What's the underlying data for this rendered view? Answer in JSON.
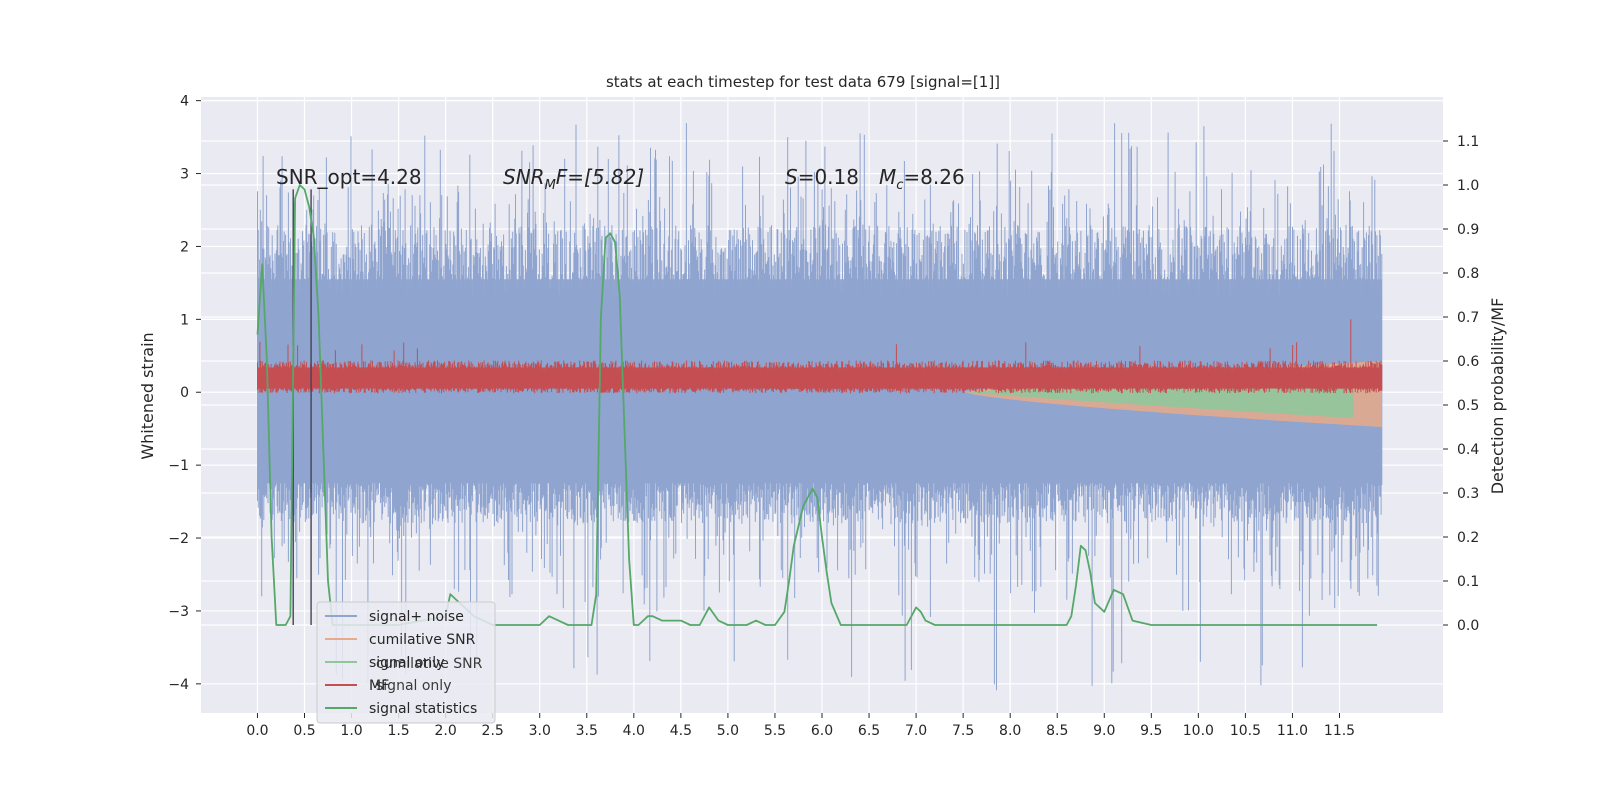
{
  "chart_data": {
    "type": "line",
    "title": "stats at each timestep for test data 679 [signal=[1]]",
    "xlabel": "",
    "ylabel": "Whitened strain",
    "ylabel_right": "Detection probability/MF",
    "xlim": [
      -0.6,
      12.6
    ],
    "ylim": [
      -4.4,
      4.05
    ],
    "ylim_right": [
      -0.2,
      1.2
    ],
    "grid": true,
    "x_ticks": [
      "0.0",
      "0.5",
      "1.0",
      "1.5",
      "2.0",
      "2.5",
      "3.0",
      "3.5",
      "4.0",
      "4.5",
      "5.0",
      "5.5",
      "6.0",
      "6.5",
      "7.0",
      "7.5",
      "8.0",
      "8.5",
      "9.0",
      "9.5",
      "10.0",
      "10.5",
      "11.0",
      "11.5"
    ],
    "y_ticks": [
      "4",
      "3",
      "2",
      "1",
      "0",
      "−1",
      "−2",
      "−3",
      "−4"
    ],
    "y_tick_values": [
      4,
      3,
      2,
      1,
      0,
      -1,
      -2,
      -3,
      -4
    ],
    "right_ticks": [
      "1.1",
      "1.0",
      "0.9",
      "0.8",
      "0.7",
      "0.6",
      "0.5",
      "0.4",
      "0.3",
      "0.2",
      "0.1",
      "0.0"
    ],
    "right_tick_values": [
      1.1,
      1.0,
      0.9,
      0.8,
      0.7,
      0.6,
      0.5,
      0.4,
      0.3,
      0.2,
      0.1,
      0.0
    ],
    "annotations": {
      "snr_opt": "SNR_opt=4.28",
      "snr_mf_prefix": "SNR",
      "snr_mf_sub": "M",
      "snr_mf_suffix": "F=[5.82]",
      "s_var": "S",
      "s_val": "=0.18",
      "mc_var": "M",
      "mc_sub": "c",
      "mc_val": "=8.26"
    },
    "vertical_lines_x": [
      0.38,
      0.57
    ],
    "legend": {
      "placement": "lower-left",
      "entries": [
        {
          "label": "signal+ noise",
          "color": "#8fa4cf"
        },
        {
          "label": "cumilative SNR",
          "color": "#e8aa8a"
        },
        {
          "label": "signal only",
          "color": "#8fc69a"
        },
        {
          "label": "MF",
          "color": "#c44e52"
        },
        {
          "label": "signal statistics",
          "color": "#55a868"
        }
      ],
      "ghost_entries": [
        "cumilative SNR",
        "signal only"
      ]
    },
    "series": [
      {
        "name": "signal+ noise",
        "axis": "left",
        "x_range": [
          0,
          11.95
        ],
        "envelope_upper": [
          1.9,
          2.3
        ],
        "envelope_lower": [
          -1.4,
          -1.8
        ],
        "spike_max": 3.7,
        "spike_min": -4.1,
        "color": "#8fa4cf"
      },
      {
        "name": "cumilative SNR",
        "axis": "right",
        "x_range": [
          7.5,
          11.95
        ],
        "values_start": 0.53,
        "values_end": 0.45,
        "color": "#e8aa8a"
      },
      {
        "name": "signal only",
        "axis": "right",
        "x_range": [
          7.5,
          11.65
        ],
        "values_start": 0.53,
        "values_end": 0.58,
        "color": "#8fc69a"
      },
      {
        "name": "MF",
        "axis": "left",
        "x_range": [
          0,
          11.95
        ],
        "band_mean": 0.22,
        "band_halfwidth": 0.18,
        "spike_max": 1.0,
        "color": "#c44e52"
      },
      {
        "name": "signal statistics",
        "axis": "right",
        "color": "#55a868",
        "x": [
          0.0,
          0.05,
          0.1,
          0.15,
          0.2,
          0.25,
          0.3,
          0.35,
          0.4,
          0.45,
          0.5,
          0.55,
          0.6,
          0.65,
          0.7,
          0.75,
          0.8,
          0.85,
          1.0,
          1.5,
          2.0,
          2.05,
          2.1,
          2.2,
          2.3,
          2.4,
          2.5,
          2.7,
          2.9,
          3.0,
          3.1,
          3.2,
          3.3,
          3.4,
          3.5,
          3.55,
          3.6,
          3.65,
          3.7,
          3.75,
          3.8,
          3.85,
          3.9,
          3.95,
          4.0,
          4.05,
          4.1,
          4.15,
          4.2,
          4.3,
          4.4,
          4.5,
          4.6,
          4.7,
          4.8,
          4.9,
          5.0,
          5.1,
          5.2,
          5.3,
          5.4,
          5.5,
          5.6,
          5.65,
          5.7,
          5.8,
          5.9,
          5.95,
          6.0,
          6.05,
          6.1,
          6.2,
          6.4,
          6.6,
          6.8,
          6.9,
          7.0,
          7.05,
          7.1,
          7.2,
          7.3,
          7.5,
          7.6,
          7.8,
          8.0,
          8.2,
          8.4,
          8.6,
          8.65,
          8.7,
          8.75,
          8.8,
          8.85,
          8.9,
          9.0,
          9.1,
          9.2,
          9.3,
          9.5,
          9.8,
          10.0,
          10.2,
          10.5,
          10.8,
          11.0,
          11.2,
          11.4,
          11.6,
          11.8,
          11.9
        ],
        "values": [
          0.66,
          0.82,
          0.6,
          0.2,
          0.0,
          0.0,
          0.0,
          0.02,
          0.97,
          1.0,
          0.99,
          0.95,
          0.88,
          0.7,
          0.4,
          0.1,
          0.0,
          0.0,
          0.0,
          0.0,
          0.02,
          0.07,
          0.06,
          0.04,
          0.02,
          0.01,
          0.0,
          0.0,
          0.0,
          0.0,
          0.02,
          0.01,
          0.0,
          0.0,
          0.0,
          0.0,
          0.07,
          0.7,
          0.88,
          0.89,
          0.87,
          0.75,
          0.45,
          0.15,
          0.0,
          0.0,
          0.01,
          0.02,
          0.02,
          0.01,
          0.01,
          0.01,
          0.0,
          0.0,
          0.04,
          0.01,
          0.0,
          0.0,
          0.0,
          0.01,
          0.0,
          0.0,
          0.03,
          0.1,
          0.18,
          0.27,
          0.31,
          0.29,
          0.2,
          0.12,
          0.05,
          0.0,
          0.0,
          0.0,
          0.0,
          0.0,
          0.04,
          0.03,
          0.01,
          0.0,
          0.0,
          0.0,
          0.0,
          0.0,
          0.0,
          0.0,
          0.0,
          0.0,
          0.02,
          0.09,
          0.18,
          0.17,
          0.12,
          0.05,
          0.03,
          0.08,
          0.07,
          0.01,
          0.0,
          0.0,
          0.0,
          0.0,
          0.0,
          0.0,
          0.0,
          0.0,
          0.0,
          0.0,
          0.0,
          0.0
        ]
      }
    ]
  }
}
